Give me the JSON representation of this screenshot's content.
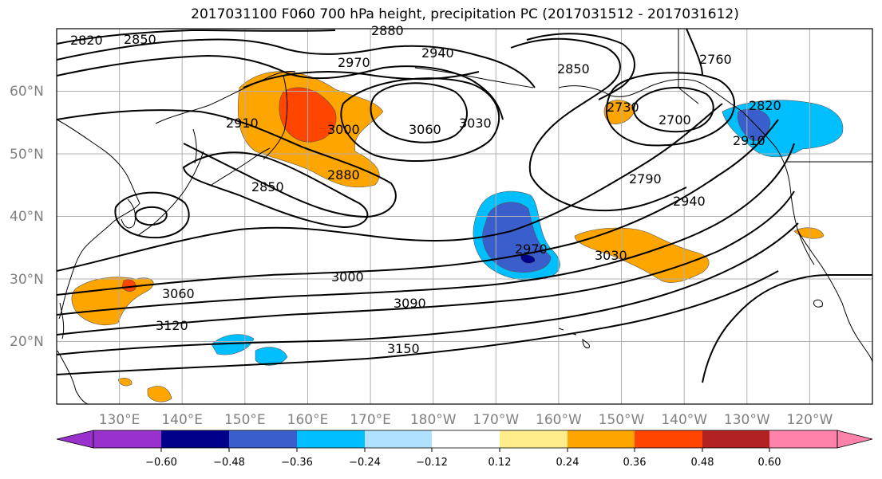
{
  "title": "2017031100 F060 700 hPa height, precipitation PC (2017031512 - 2017031612)",
  "map": {
    "lon_range": [
      120,
      250
    ],
    "lat_range": [
      10,
      70
    ],
    "lat_labels": [
      "20°N",
      "30°N",
      "40°N",
      "50°N",
      "60°N"
    ],
    "lon_labels": [
      "130°E",
      "140°E",
      "150°E",
      "160°E",
      "170°E",
      "180°W",
      "170°W",
      "160°W",
      "150°W",
      "140°W",
      "130°W",
      "120°W"
    ],
    "grid": true
  },
  "colorbar": {
    "colors": [
      "#9932cc",
      "#00008b",
      "#3a5fcd",
      "#00bfff",
      "#b0e2ff",
      "#ffffff",
      "#ffec8b",
      "#ffa500",
      "#ff4500",
      "#b22222",
      "#ff82ab"
    ],
    "ticks": [
      "−0.60",
      "−0.48",
      "−0.36",
      "−0.24",
      "−0.12",
      "0.12",
      "0.24",
      "0.36",
      "0.48",
      "0.60"
    ]
  },
  "contour_labels": [
    "2820",
    "2850",
    "2880",
    "2970",
    "2940",
    "2850",
    "2760",
    "2910",
    "3000",
    "3060",
    "3030",
    "2730",
    "2700",
    "2820",
    "2910",
    "2850",
    "2880",
    "2790",
    "2940",
    "2970",
    "3030",
    "3000",
    "3060",
    "3090",
    "3120",
    "3150"
  ]
}
